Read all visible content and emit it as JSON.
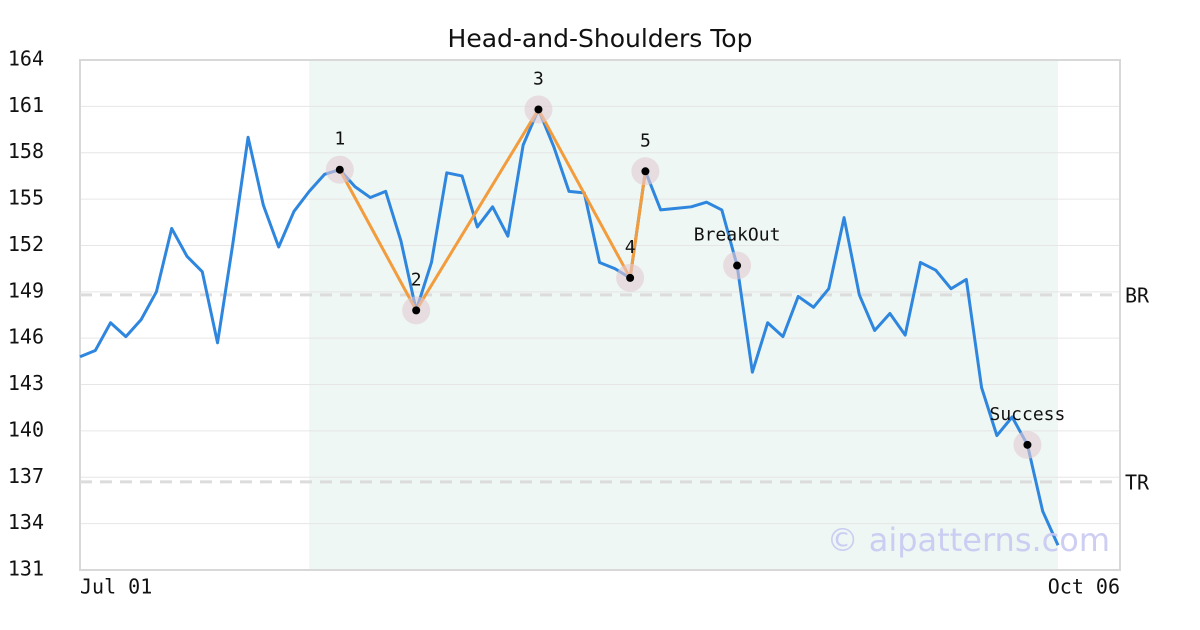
{
  "chart_data": {
    "type": "line",
    "title": "Head-and-Shoulders Top",
    "categories": [
      "Jul 01",
      null,
      null,
      null,
      null,
      null,
      null,
      null,
      null,
      null,
      null,
      null,
      null,
      null,
      null,
      null,
      null,
      null,
      null,
      null,
      null,
      null,
      null,
      null,
      null,
      null,
      null,
      null,
      null,
      null,
      null,
      null,
      null,
      null,
      null,
      null,
      null,
      null,
      null,
      null,
      null,
      null,
      null,
      null,
      null,
      null,
      null,
      null,
      null,
      null,
      null,
      null,
      null,
      null,
      null,
      null,
      null,
      null,
      null,
      null,
      null,
      null,
      null,
      null,
      "Oct 06"
    ],
    "values": [
      144.8,
      145.2,
      147.0,
      146.1,
      147.2,
      149.0,
      153.1,
      151.3,
      150.3,
      145.7,
      152.1,
      159.0,
      154.6,
      151.9,
      154.2,
      155.5,
      156.6,
      156.9,
      155.8,
      155.1,
      155.5,
      152.3,
      147.8,
      150.9,
      156.7,
      156.5,
      153.2,
      154.5,
      152.6,
      158.5,
      160.8,
      158.4,
      155.5,
      155.4,
      150.9,
      150.5,
      149.9,
      156.8,
      154.3,
      154.4,
      154.5,
      154.8,
      154.3,
      150.7,
      143.8,
      147.0,
      146.1,
      148.7,
      148.0,
      149.2,
      153.8,
      148.8,
      146.5,
      147.6,
      146.2,
      150.9,
      150.4,
      149.2,
      149.8,
      142.8,
      139.7,
      140.9,
      139.1,
      134.8,
      132.6
    ],
    "color": "#2e86de",
    "ylim": [
      131,
      164
    ],
    "yticks": [
      131,
      134,
      137,
      140,
      143,
      146,
      149,
      152,
      155,
      158,
      161,
      164
    ],
    "grid": true,
    "shaded_range": [
      15,
      64
    ],
    "shade_color": "#eef7f3",
    "pattern_color": "#f39c3d",
    "pattern_points": [
      {
        "label": "1",
        "index": 17,
        "value": 156.9
      },
      {
        "label": "2",
        "index": 22,
        "value": 147.8
      },
      {
        "label": "3",
        "index": 30,
        "value": 160.8
      },
      {
        "label": "4",
        "index": 36,
        "value": 149.9
      },
      {
        "label": "5",
        "index": 37,
        "value": 156.8
      }
    ],
    "signal_points": [
      {
        "label": "BreakOut",
        "index": 43,
        "value": 150.7
      },
      {
        "label": "Success",
        "index": 62,
        "value": 139.1
      }
    ],
    "levels": [
      {
        "label": "BR",
        "value": 148.8
      },
      {
        "label": "TR",
        "value": 136.7
      }
    ],
    "watermark": "© aipatterns.com"
  }
}
